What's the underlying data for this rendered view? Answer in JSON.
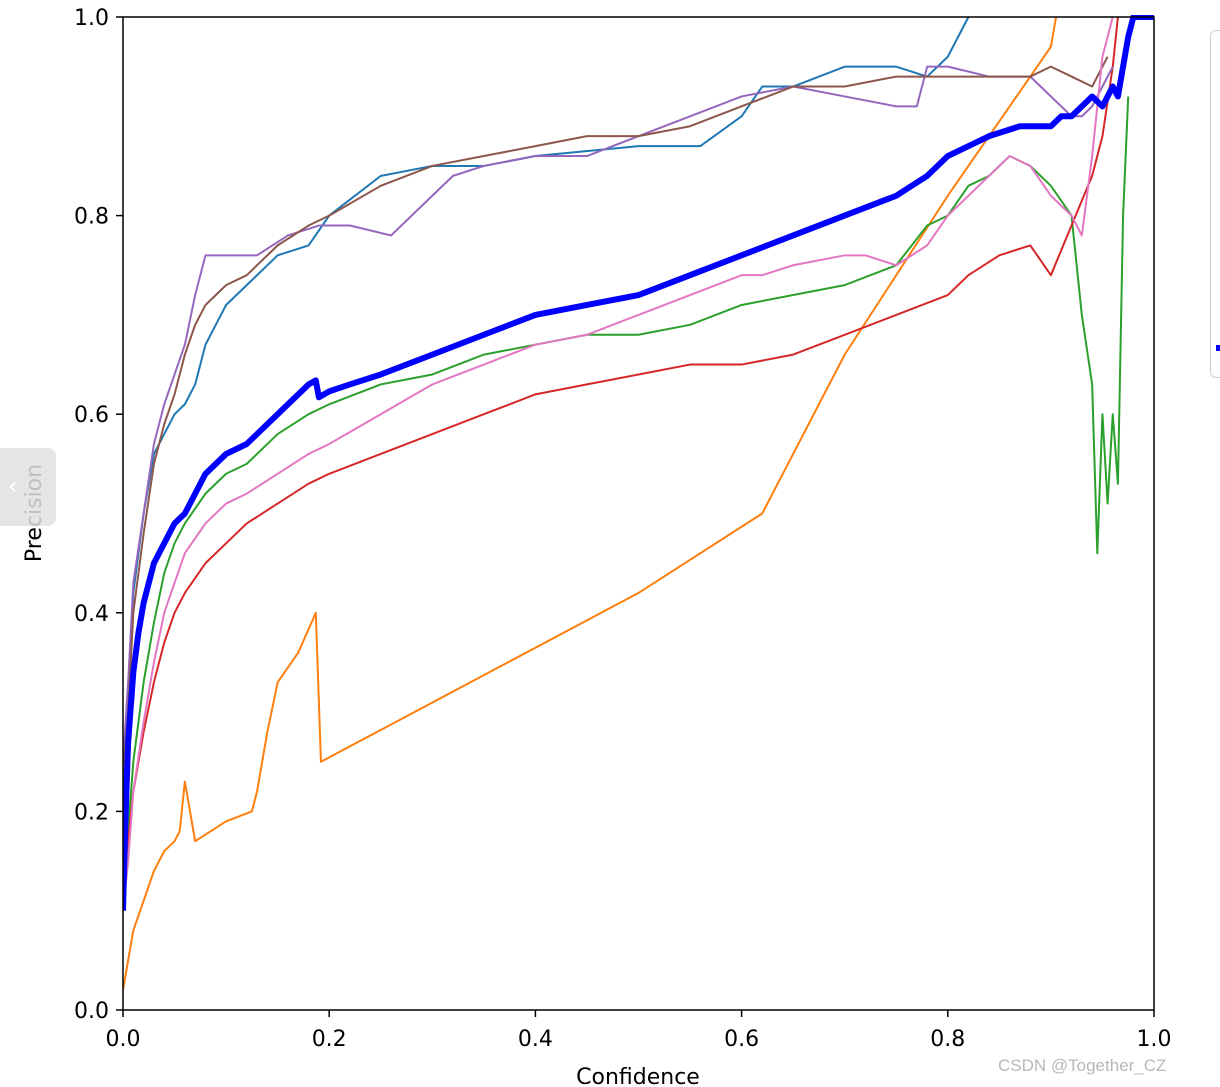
{
  "chart_data": {
    "type": "line",
    "title": "",
    "xlabel": "Confidence",
    "ylabel": "Precision",
    "xlim": [
      0.0,
      1.0
    ],
    "ylim": [
      0.0,
      1.0
    ],
    "xticks": [
      "0.0",
      "0.2",
      "0.4",
      "0.6",
      "0.8",
      "1.0"
    ],
    "yticks": [
      "0.0",
      "0.2",
      "0.4",
      "0.6",
      "0.8",
      "1.0"
    ],
    "grid": false,
    "legend": "right, outside plot (cropped)",
    "series": [
      {
        "color": "#1f77b4",
        "x": [
          0.0,
          0.005,
          0.01,
          0.015,
          0.02,
          0.03,
          0.04,
          0.05,
          0.06,
          0.07,
          0.08,
          0.1,
          0.12,
          0.15,
          0.18,
          0.2,
          0.25,
          0.3,
          0.35,
          0.4,
          0.5,
          0.56,
          0.6,
          0.62,
          0.65,
          0.7,
          0.75,
          0.78,
          0.8,
          0.81,
          0.82
        ],
        "y": [
          0.22,
          0.3,
          0.42,
          0.46,
          0.5,
          0.56,
          0.58,
          0.6,
          0.61,
          0.63,
          0.67,
          0.71,
          0.73,
          0.76,
          0.77,
          0.8,
          0.84,
          0.85,
          0.85,
          0.86,
          0.87,
          0.87,
          0.9,
          0.93,
          0.93,
          0.95,
          0.95,
          0.94,
          0.96,
          0.98,
          1.0
        ]
      },
      {
        "color": "#ff7f0e",
        "x": [
          0.0,
          0.005,
          0.01,
          0.02,
          0.03,
          0.04,
          0.05,
          0.055,
          0.06,
          0.065,
          0.07,
          0.1,
          0.125,
          0.13,
          0.14,
          0.15,
          0.17,
          0.187,
          0.192,
          0.5,
          0.62,
          0.7,
          0.8,
          0.9,
          0.905
        ],
        "y": [
          0.02,
          0.05,
          0.08,
          0.11,
          0.14,
          0.16,
          0.17,
          0.18,
          0.23,
          0.2,
          0.17,
          0.19,
          0.2,
          0.22,
          0.28,
          0.33,
          0.36,
          0.4,
          0.25,
          0.42,
          0.5,
          0.66,
          0.82,
          0.97,
          1.0
        ]
      },
      {
        "color": "#2ca02c",
        "x": [
          0.0,
          0.005,
          0.01,
          0.02,
          0.03,
          0.04,
          0.05,
          0.06,
          0.08,
          0.1,
          0.12,
          0.15,
          0.18,
          0.2,
          0.25,
          0.3,
          0.35,
          0.4,
          0.45,
          0.5,
          0.55,
          0.6,
          0.65,
          0.7,
          0.75,
          0.78,
          0.8,
          0.82,
          0.84,
          0.86,
          0.88,
          0.9,
          0.92,
          0.93,
          0.94,
          0.945,
          0.95,
          0.955,
          0.96,
          0.965,
          0.97,
          0.975
        ],
        "y": [
          0.12,
          0.18,
          0.25,
          0.33,
          0.39,
          0.44,
          0.47,
          0.49,
          0.52,
          0.54,
          0.55,
          0.58,
          0.6,
          0.61,
          0.63,
          0.64,
          0.66,
          0.67,
          0.68,
          0.68,
          0.69,
          0.71,
          0.72,
          0.73,
          0.75,
          0.79,
          0.8,
          0.83,
          0.84,
          0.86,
          0.85,
          0.83,
          0.8,
          0.7,
          0.63,
          0.46,
          0.6,
          0.51,
          0.6,
          0.53,
          0.8,
          0.92
        ]
      },
      {
        "color": "#d62728",
        "x": [
          0.0,
          0.005,
          0.01,
          0.02,
          0.03,
          0.04,
          0.05,
          0.06,
          0.08,
          0.1,
          0.12,
          0.15,
          0.18,
          0.2,
          0.25,
          0.3,
          0.35,
          0.4,
          0.45,
          0.5,
          0.55,
          0.6,
          0.65,
          0.7,
          0.75,
          0.8,
          0.82,
          0.85,
          0.88,
          0.9,
          0.92,
          0.94,
          0.95,
          0.96,
          0.965
        ],
        "y": [
          0.12,
          0.17,
          0.22,
          0.28,
          0.33,
          0.37,
          0.4,
          0.42,
          0.45,
          0.47,
          0.49,
          0.51,
          0.53,
          0.54,
          0.56,
          0.58,
          0.6,
          0.62,
          0.63,
          0.64,
          0.65,
          0.65,
          0.66,
          0.68,
          0.7,
          0.72,
          0.74,
          0.76,
          0.77,
          0.74,
          0.79,
          0.84,
          0.88,
          0.95,
          1.0
        ]
      },
      {
        "color": "#9467bd",
        "x": [
          0.0,
          0.005,
          0.01,
          0.02,
          0.03,
          0.04,
          0.05,
          0.06,
          0.07,
          0.08,
          0.1,
          0.13,
          0.16,
          0.19,
          0.2,
          0.22,
          0.26,
          0.3,
          0.32,
          0.35,
          0.4,
          0.45,
          0.5,
          0.55,
          0.6,
          0.65,
          0.7,
          0.75,
          0.77,
          0.78,
          0.8,
          0.84,
          0.88,
          0.89,
          0.9,
          0.91,
          0.92,
          0.93,
          0.94,
          0.95,
          0.96
        ],
        "y": [
          0.25,
          0.33,
          0.43,
          0.5,
          0.57,
          0.61,
          0.64,
          0.67,
          0.72,
          0.76,
          0.76,
          0.76,
          0.78,
          0.79,
          0.79,
          0.79,
          0.78,
          0.82,
          0.84,
          0.85,
          0.86,
          0.86,
          0.88,
          0.9,
          0.92,
          0.93,
          0.92,
          0.91,
          0.91,
          0.95,
          0.95,
          0.94,
          0.94,
          0.93,
          0.92,
          0.91,
          0.9,
          0.9,
          0.91,
          0.93,
          0.95
        ]
      },
      {
        "color": "#8c564b",
        "x": [
          0.0,
          0.005,
          0.01,
          0.02,
          0.03,
          0.04,
          0.05,
          0.06,
          0.07,
          0.08,
          0.1,
          0.12,
          0.15,
          0.18,
          0.2,
          0.25,
          0.3,
          0.35,
          0.4,
          0.45,
          0.5,
          0.55,
          0.6,
          0.65,
          0.7,
          0.75,
          0.8,
          0.85,
          0.88,
          0.9,
          0.92,
          0.94,
          0.95,
          0.955
        ],
        "y": [
          0.24,
          0.3,
          0.4,
          0.48,
          0.55,
          0.59,
          0.62,
          0.66,
          0.69,
          0.71,
          0.73,
          0.74,
          0.77,
          0.79,
          0.8,
          0.83,
          0.85,
          0.86,
          0.87,
          0.88,
          0.88,
          0.89,
          0.91,
          0.93,
          0.93,
          0.94,
          0.94,
          0.94,
          0.94,
          0.95,
          0.94,
          0.93,
          0.95,
          0.96
        ]
      },
      {
        "color": "#e377c2",
        "x": [
          0.0,
          0.005,
          0.01,
          0.02,
          0.03,
          0.04,
          0.05,
          0.06,
          0.08,
          0.1,
          0.12,
          0.15,
          0.18,
          0.2,
          0.25,
          0.3,
          0.35,
          0.4,
          0.45,
          0.5,
          0.55,
          0.6,
          0.62,
          0.65,
          0.7,
          0.72,
          0.75,
          0.78,
          0.8,
          0.82,
          0.84,
          0.86,
          0.88,
          0.9,
          0.92,
          0.93,
          0.94,
          0.95,
          0.96
        ],
        "y": [
          0.1,
          0.15,
          0.22,
          0.29,
          0.35,
          0.4,
          0.43,
          0.46,
          0.49,
          0.51,
          0.52,
          0.54,
          0.56,
          0.57,
          0.6,
          0.63,
          0.65,
          0.67,
          0.68,
          0.7,
          0.72,
          0.74,
          0.74,
          0.75,
          0.76,
          0.76,
          0.75,
          0.77,
          0.8,
          0.82,
          0.84,
          0.86,
          0.85,
          0.82,
          0.8,
          0.78,
          0.86,
          0.96,
          1.0
        ]
      },
      {
        "color": "#0000ff",
        "thick": true,
        "x": [
          0.0,
          0.002,
          0.005,
          0.01,
          0.015,
          0.02,
          0.03,
          0.04,
          0.05,
          0.06,
          0.08,
          0.1,
          0.12,
          0.15,
          0.18,
          0.187,
          0.19,
          0.2,
          0.22,
          0.25,
          0.3,
          0.35,
          0.4,
          0.45,
          0.5,
          0.55,
          0.6,
          0.65,
          0.7,
          0.75,
          0.78,
          0.8,
          0.84,
          0.87,
          0.9,
          0.91,
          0.92,
          0.93,
          0.94,
          0.95,
          0.96,
          0.965,
          0.97,
          0.975,
          0.98,
          1.0
        ],
        "y": [
          0.1,
          0.18,
          0.27,
          0.34,
          0.38,
          0.41,
          0.45,
          0.47,
          0.49,
          0.5,
          0.54,
          0.56,
          0.57,
          0.6,
          0.63,
          0.634,
          0.617,
          0.623,
          0.63,
          0.64,
          0.66,
          0.68,
          0.7,
          0.71,
          0.72,
          0.74,
          0.76,
          0.78,
          0.8,
          0.82,
          0.84,
          0.86,
          0.88,
          0.89,
          0.89,
          0.9,
          0.9,
          0.91,
          0.92,
          0.91,
          0.93,
          0.92,
          0.95,
          0.98,
          1.0,
          1.0
        ]
      }
    ]
  },
  "watermark": "CSDN @Together_CZ"
}
